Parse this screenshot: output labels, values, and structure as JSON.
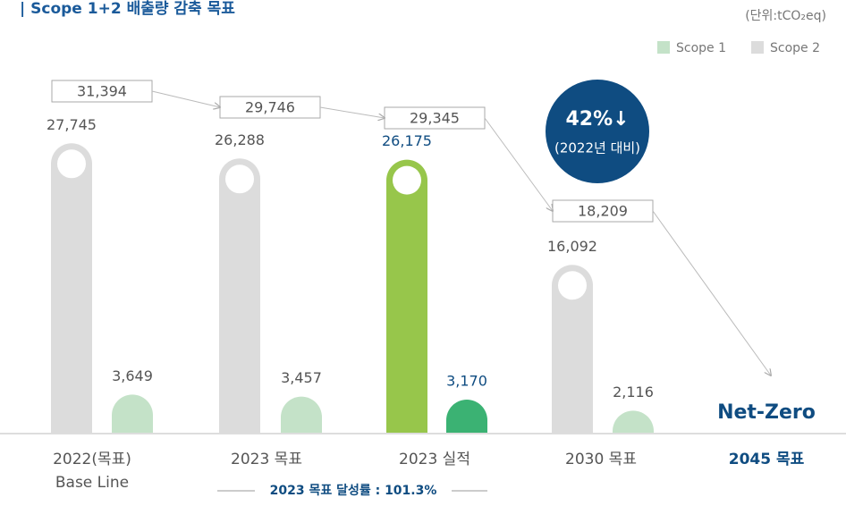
{
  "chart_data": {
    "type": "bar",
    "title": "| Scope 1+2 배출량 감축 목표",
    "unit": "(단위:tCO₂eq)",
    "categories": [
      "2022(목표)",
      "2023 목표",
      "2023 실적",
      "2030 목표",
      "2045 목표"
    ],
    "subcategory": "Base Line",
    "series": [
      {
        "name": "Scope 1",
        "color": "#c4e2c8",
        "colors": [
          "#c4e2c8",
          "#c4e2c8",
          "#3bb273",
          "#c4e2c8",
          null
        ],
        "values": [
          3649,
          3457,
          3170,
          2116,
          null
        ],
        "value_labels": [
          "3,649",
          "3,457",
          "3,170",
          "2,116",
          null
        ]
      },
      {
        "name": "Scope 2",
        "color": "#dcdcdc",
        "colors": [
          "#dcdcdc",
          "#dcdcdc",
          "#97c64b",
          "#dcdcdc",
          null
        ],
        "values": [
          27745,
          26288,
          26175,
          16092,
          null
        ],
        "value_labels": [
          "27,745",
          "26,288",
          "26,175",
          "16,092",
          null
        ]
      }
    ],
    "totals": [
      31394,
      29746,
      29345,
      18209,
      null
    ],
    "total_labels": [
      "31,394",
      "29,746",
      "29,345",
      "18,209",
      null
    ],
    "end_label": "Net-Zero",
    "badge": {
      "value": 42,
      "label": "42%↓",
      "note": "(2022년 대비)"
    },
    "footer": "2023 목표 달성률 : 101.3%",
    "ylim": [
      0,
      30000
    ],
    "legend": "top-right"
  }
}
